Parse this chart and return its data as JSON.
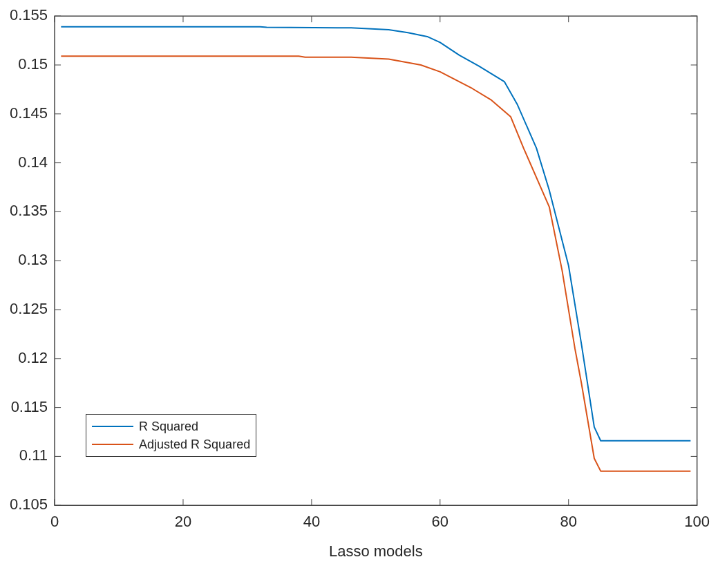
{
  "chart_data": {
    "type": "line",
    "xlabel": "Lasso models",
    "xlim": [
      0,
      100
    ],
    "xticks": [
      0,
      20,
      40,
      60,
      80,
      100
    ],
    "ylim": [
      0.105,
      0.155
    ],
    "yticks": [
      0.105,
      0.11,
      0.115,
      0.12,
      0.125,
      0.13,
      0.135,
      0.14,
      0.145,
      0.15,
      0.155
    ],
    "grid": false,
    "legend": "bottom left",
    "marker": "none",
    "line_style": "solid",
    "series": [
      {
        "name": "R Squared",
        "color": "#0072bd",
        "x": [
          1,
          32,
          33,
          44,
          46,
          52,
          55,
          58,
          60,
          63,
          66,
          70,
          72,
          75,
          77,
          80,
          82,
          84,
          85,
          99
        ],
        "values": [
          0.1539,
          0.1539,
          0.15385,
          0.1538,
          0.1538,
          0.1536,
          0.1533,
          0.1529,
          0.1523,
          0.151,
          0.1499,
          0.1483,
          0.146,
          0.1415,
          0.1372,
          0.1295,
          0.1215,
          0.113,
          0.1116,
          0.1116
        ]
      },
      {
        "name": "Adjusted R Squared",
        "color": "#d95319",
        "x": [
          1,
          38,
          39,
          46,
          52,
          57,
          60,
          65,
          68,
          71,
          73,
          75,
          77,
          79,
          81,
          82,
          84,
          85,
          99
        ],
        "values": [
          0.1509,
          0.1509,
          0.1508,
          0.1508,
          0.1506,
          0.15,
          0.1493,
          0.1476,
          0.1464,
          0.1447,
          0.1415,
          0.1385,
          0.1355,
          0.129,
          0.121,
          0.1175,
          0.1098,
          0.1085,
          0.1085
        ]
      }
    ]
  }
}
